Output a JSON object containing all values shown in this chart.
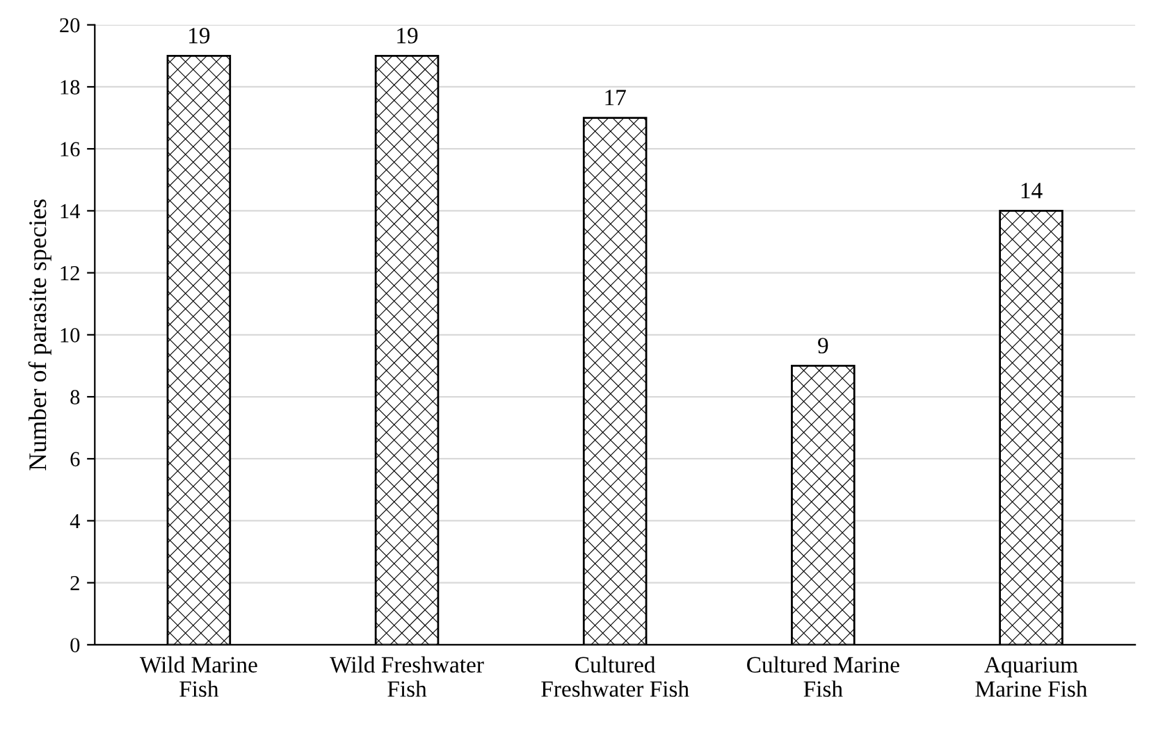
{
  "chart_data": {
    "type": "bar",
    "ylabel": "Number of parasite species",
    "categories": [
      "Wild Marine\nFish",
      "Wild Freshwater\nFish",
      "Cultured\nFreshwater Fish",
      "Cultured Marine\nFish",
      "Aquarium\nMarine Fish"
    ],
    "values": [
      19,
      19,
      17,
      9,
      14
    ],
    "color": "#000000",
    "ylim": [
      0,
      20
    ],
    "yticks": [
      0,
      2,
      4,
      6,
      8,
      10,
      12,
      14,
      16,
      18,
      20
    ],
    "grid": "y",
    "data_labels": true
  }
}
